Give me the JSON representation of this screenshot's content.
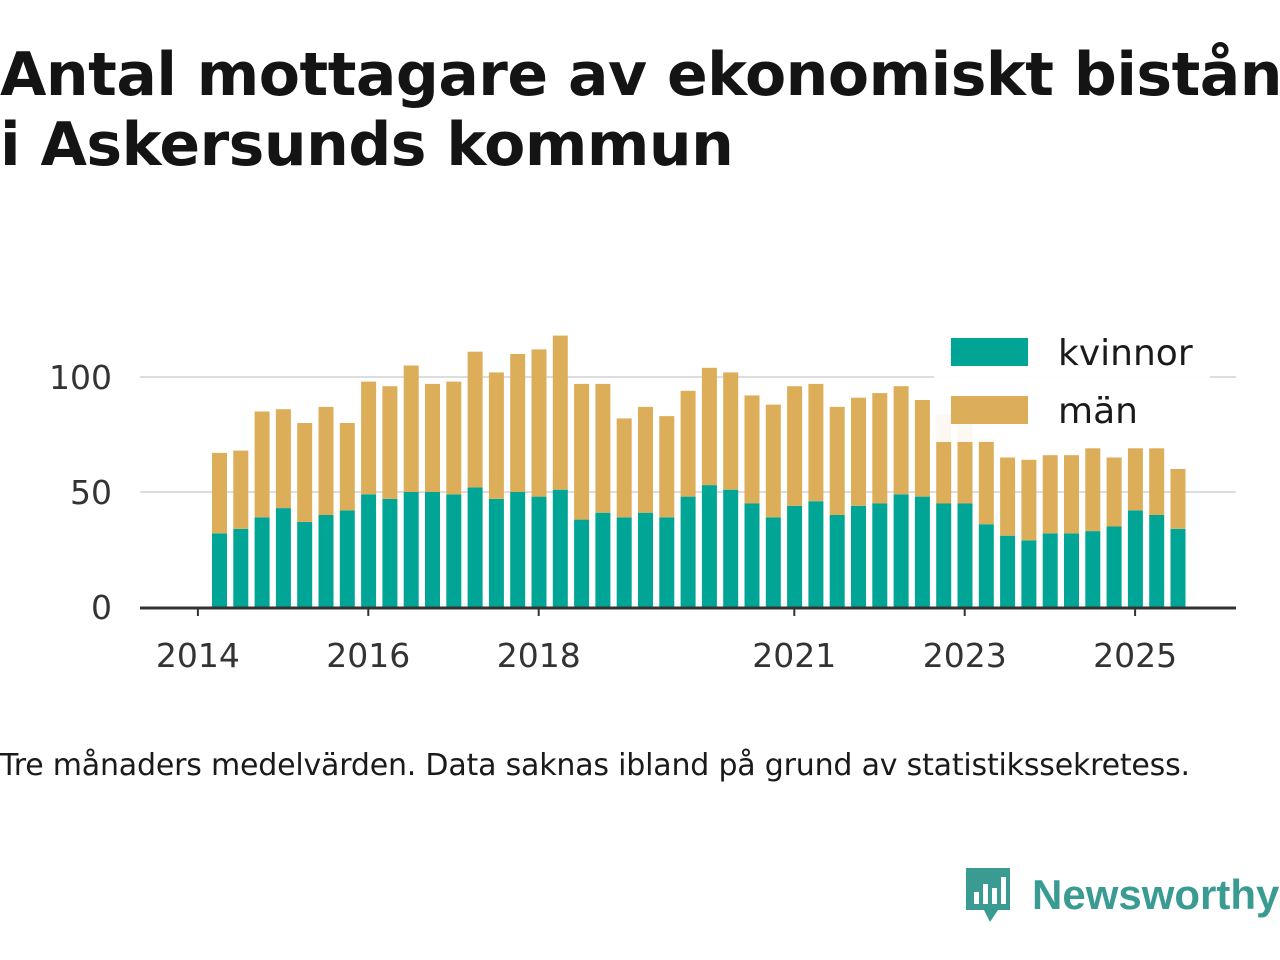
{
  "chart_data": {
    "type": "bar",
    "stacked": true,
    "title_lines": [
      "Antal mottagare av ekonomiskt bistånd",
      "i Askersunds kommun"
    ],
    "xlabel": "",
    "ylabel": "",
    "ylim": [
      0,
      120
    ],
    "yticks": [
      0,
      50,
      100
    ],
    "xtick_labels": [
      "2014",
      "2016",
      "2018",
      "2021",
      "2023",
      "2025"
    ],
    "xtick_positions": [
      0,
      8,
      16,
      28,
      36,
      44
    ],
    "legend_position": "top-right",
    "grid": true,
    "series": [
      {
        "name": "kvinnor",
        "color": "#00a596",
        "values": [
          32,
          34,
          39,
          43,
          37,
          40,
          42,
          49,
          47,
          50,
          50,
          49,
          52,
          47,
          50,
          48,
          51,
          38,
          41,
          39,
          41,
          39,
          48,
          53,
          51,
          45,
          39,
          44,
          46,
          40,
          44,
          45,
          49,
          48,
          45,
          45,
          36,
          31,
          29,
          32,
          32,
          33,
          35,
          42,
          40,
          34
        ]
      },
      {
        "name": "män",
        "color": "#dcae59",
        "values": [
          35,
          34,
          46,
          43,
          43,
          47,
          38,
          49,
          49,
          55,
          47,
          49,
          59,
          55,
          60,
          64,
          67,
          59,
          56,
          43,
          46,
          44,
          46,
          51,
          51,
          47,
          49,
          52,
          51,
          47,
          47,
          48,
          47,
          42,
          39,
          35,
          37,
          34,
          35,
          34,
          34,
          36,
          30,
          27,
          29,
          26
        ]
      }
    ]
  },
  "footnote": "Tre månaders medelvärden. Data saknas ibland på grund av statistikssekretess.",
  "brand": {
    "name": "Newsworthy",
    "color": "#3a9b93"
  }
}
